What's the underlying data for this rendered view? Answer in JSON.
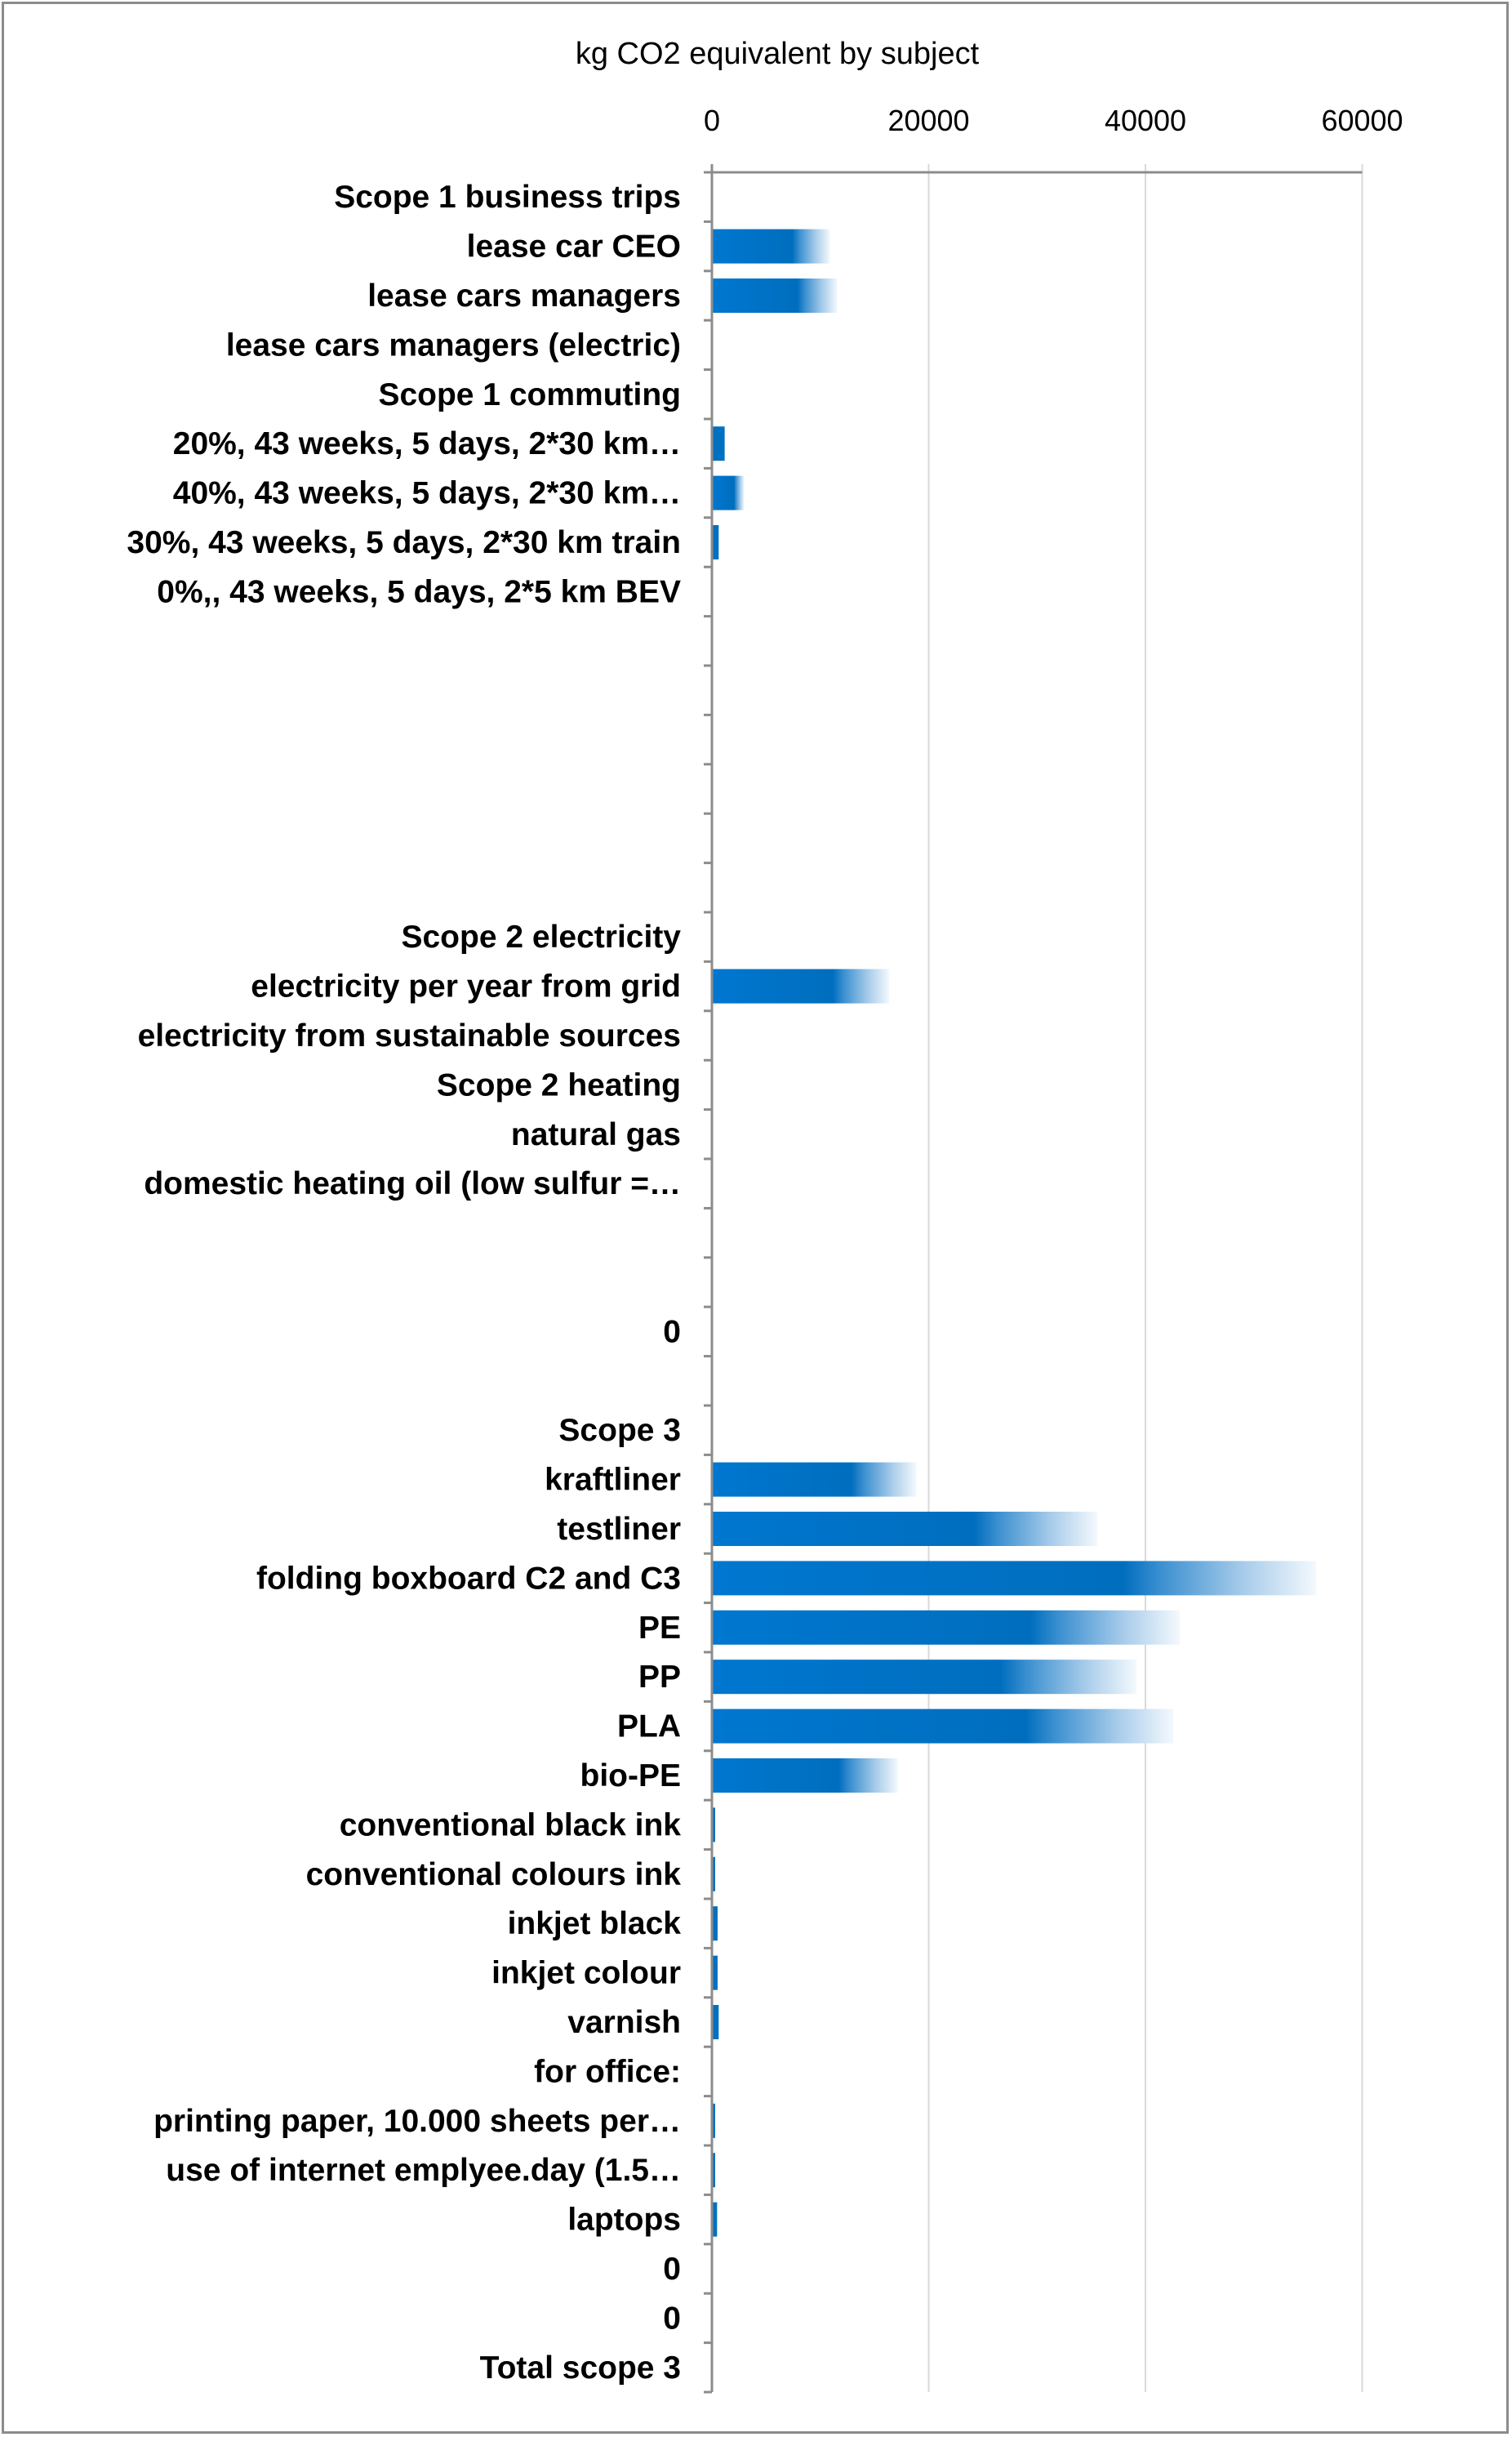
{
  "chart_data": {
    "type": "bar",
    "orientation": "horizontal",
    "title": "kg CO2 equivalent by subject",
    "xlabel": "",
    "ylabel": "",
    "xlim": [
      0,
      60000
    ],
    "xticks": [
      "0",
      "20000",
      "40000",
      "60000"
    ],
    "x_axis_position": "top",
    "grid": true,
    "legend": "none",
    "bar_color": "#0070C0",
    "categories": [
      "Scope 1 business trips",
      "lease car CEO",
      "lease cars managers",
      "lease cars managers (electric)",
      "Scope 1 commuting",
      "20%, 43 weeks, 5 days, 2*30 km…",
      "40%, 43 weeks, 5 days, 2*30 km…",
      "30%, 43 weeks, 5 days, 2*30 km train",
      "0%,, 43 weeks, 5 days, 2*5 km BEV",
      "",
      "",
      "",
      "",
      "",
      "",
      "Scope 2 electricity",
      "electricity per year from grid",
      "electricity from sustainable sources",
      "Scope 2 heating",
      "natural gas",
      "domestic heating oil (low sulfur =…",
      "",
      "",
      "0",
      "",
      "Scope 3",
      "kraftliner",
      "testliner",
      "folding boxboard C2 and C3",
      "PE",
      "PP",
      "PLA",
      "bio-PE",
      "conventional black ink",
      "conventional colours ink",
      "inkjet black",
      "inkjet colour",
      "varnish",
      "for office:",
      "printing paper, 10.000 sheets per…",
      "use of internet emplyee.day (1.5…",
      "laptops",
      "0",
      "0",
      "Total scope  3"
    ],
    "values": [
      0,
      10800,
      11500,
      0,
      0,
      1100,
      2900,
      550,
      0,
      0,
      0,
      0,
      0,
      0,
      0,
      0,
      16300,
      0,
      0,
      0,
      0,
      0,
      0,
      0,
      0,
      0,
      18800,
      35500,
      55700,
      43100,
      39100,
      42500,
      17100,
      200,
      200,
      450,
      450,
      550,
      0,
      100,
      150,
      400,
      0,
      0,
      0
    ]
  }
}
